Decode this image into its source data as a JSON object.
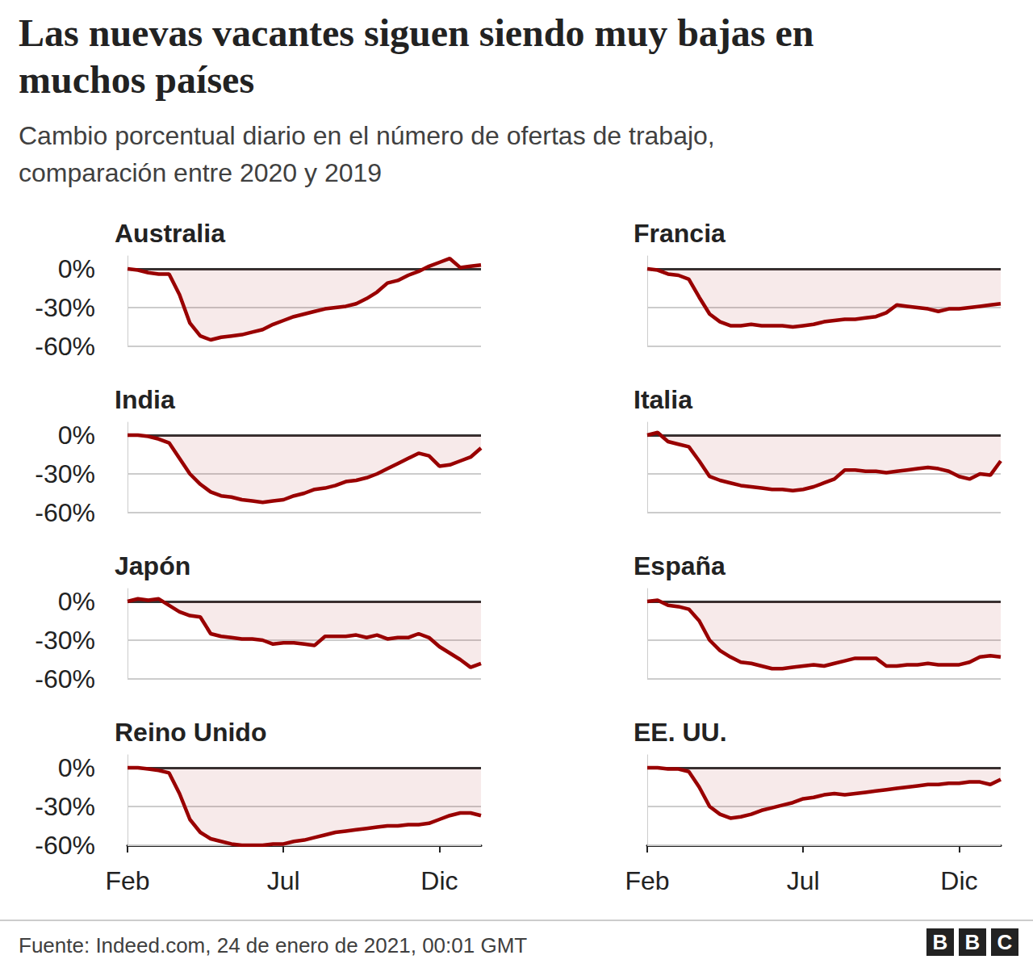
{
  "title": "Las nuevas vacantes siguen siendo muy bajas en muchos países",
  "subtitle": "Cambio porcentual diario en el número de ofertas de trabajo, comparación entre 2020 y 2019",
  "source": "Fuente: Indeed.com, 24 de enero de 2021, 00:01 GMT",
  "logo": "BBC",
  "chart_data": [
    {
      "type": "line",
      "title": "Australia",
      "categories": [
        "Feb",
        null,
        null,
        null,
        null,
        null,
        null,
        null,
        null,
        null,
        null,
        null,
        null,
        null,
        null,
        "Jul",
        null,
        null,
        null,
        null,
        null,
        null,
        null,
        null,
        null,
        null,
        null,
        null,
        null,
        null,
        "Dic",
        null,
        null,
        null,
        null
      ],
      "values": [
        0,
        -1,
        -3,
        -4,
        -4,
        -20,
        -42,
        -52,
        -55,
        -53,
        -52,
        -51,
        -49,
        -47,
        -43,
        -40,
        -37,
        -35,
        -33,
        -31,
        -30,
        -29,
        -27,
        -23,
        -18,
        -11,
        -9,
        -5,
        -2,
        2,
        5,
        8,
        1,
        2,
        3
      ],
      "color": "#990000",
      "ylim": [
        -60,
        10
      ],
      "yticks": [
        {
          "value": -60,
          "label": "-60%"
        },
        {
          "value": -30,
          "label": "-30%"
        },
        {
          "value": 0,
          "label": "0%"
        }
      ],
      "grid": true,
      "tick_labels": "y"
    },
    {
      "type": "line",
      "title": "Francia",
      "categories": [
        "Feb",
        null,
        null,
        null,
        null,
        null,
        null,
        null,
        null,
        null,
        null,
        null,
        null,
        null,
        null,
        "Jul",
        null,
        null,
        null,
        null,
        null,
        null,
        null,
        null,
        null,
        null,
        null,
        null,
        null,
        null,
        "Dic",
        null,
        null,
        null,
        null
      ],
      "values": [
        0,
        -1,
        -4,
        -5,
        -8,
        -22,
        -35,
        -41,
        -44,
        -44,
        -43,
        -44,
        -44,
        -44,
        -45,
        -44,
        -43,
        -41,
        -40,
        -39,
        -39,
        -38,
        -37,
        -34,
        -28,
        -29,
        -30,
        -31,
        -33,
        -31,
        -31,
        -30,
        -29,
        -28,
        -27
      ],
      "color": "#990000",
      "ylim": [
        -60,
        10
      ],
      "yticks": [
        {
          "value": -60,
          "label": "-60%"
        },
        {
          "value": -30,
          "label": "-30%"
        },
        {
          "value": 0,
          "label": "0%"
        }
      ],
      "grid": true,
      "tick_labels": false
    },
    {
      "type": "line",
      "title": "India",
      "categories": [
        "Feb",
        null,
        null,
        null,
        null,
        null,
        null,
        null,
        null,
        null,
        null,
        null,
        null,
        null,
        null,
        "Jul",
        null,
        null,
        null,
        null,
        null,
        null,
        null,
        null,
        null,
        null,
        null,
        null,
        null,
        null,
        "Dic",
        null,
        null,
        null,
        null
      ],
      "values": [
        0,
        0,
        -1,
        -3,
        -6,
        -18,
        -30,
        -38,
        -44,
        -47,
        -48,
        -50,
        -51,
        -52,
        -51,
        -50,
        -47,
        -45,
        -42,
        -41,
        -39,
        -36,
        -35,
        -33,
        -30,
        -26,
        -22,
        -18,
        -14,
        -16,
        -24,
        -23,
        -20,
        -17,
        -10
      ],
      "color": "#990000",
      "ylim": [
        -60,
        10
      ],
      "yticks": [
        {
          "value": -60,
          "label": "-60%"
        },
        {
          "value": -30,
          "label": "-30%"
        },
        {
          "value": 0,
          "label": "0%"
        }
      ],
      "grid": true,
      "tick_labels": "y"
    },
    {
      "type": "line",
      "title": "Italia",
      "categories": [
        "Feb",
        null,
        null,
        null,
        null,
        null,
        null,
        null,
        null,
        null,
        null,
        null,
        null,
        null,
        null,
        "Jul",
        null,
        null,
        null,
        null,
        null,
        null,
        null,
        null,
        null,
        null,
        null,
        null,
        null,
        null,
        "Dic",
        null,
        null,
        null,
        null
      ],
      "values": [
        0,
        2,
        -5,
        -7,
        -9,
        -20,
        -32,
        -35,
        -37,
        -39,
        -40,
        -41,
        -42,
        -42,
        -43,
        -42,
        -40,
        -37,
        -34,
        -27,
        -27,
        -28,
        -28,
        -29,
        -28,
        -27,
        -26,
        -25,
        -26,
        -28,
        -32,
        -34,
        -30,
        -31,
        -20
      ],
      "color": "#990000",
      "ylim": [
        -60,
        10
      ],
      "yticks": [
        {
          "value": -60,
          "label": "-60%"
        },
        {
          "value": -30,
          "label": "-30%"
        },
        {
          "value": 0,
          "label": "0%"
        }
      ],
      "grid": true,
      "tick_labels": false
    },
    {
      "type": "line",
      "title": "Japón",
      "categories": [
        "Feb",
        null,
        null,
        null,
        null,
        null,
        null,
        null,
        null,
        null,
        null,
        null,
        null,
        null,
        null,
        "Jul",
        null,
        null,
        null,
        null,
        null,
        null,
        null,
        null,
        null,
        null,
        null,
        null,
        null,
        null,
        "Dic",
        null,
        null,
        null,
        null
      ],
      "values": [
        0,
        2,
        1,
        2,
        -3,
        -8,
        -11,
        -12,
        -25,
        -27,
        -28,
        -29,
        -29,
        -30,
        -33,
        -32,
        -32,
        -33,
        -34,
        -27,
        -27,
        -27,
        -26,
        -28,
        -26,
        -29,
        -28,
        -28,
        -25,
        -28,
        -35,
        -40,
        -45,
        -51,
        -48
      ],
      "color": "#990000",
      "ylim": [
        -60,
        10
      ],
      "yticks": [
        {
          "value": -60,
          "label": "-60%"
        },
        {
          "value": -30,
          "label": "-30%"
        },
        {
          "value": 0,
          "label": "0%"
        }
      ],
      "grid": true,
      "tick_labels": "y"
    },
    {
      "type": "line",
      "title": "España",
      "categories": [
        "Feb",
        null,
        null,
        null,
        null,
        null,
        null,
        null,
        null,
        null,
        null,
        null,
        null,
        null,
        null,
        "Jul",
        null,
        null,
        null,
        null,
        null,
        null,
        null,
        null,
        null,
        null,
        null,
        null,
        null,
        null,
        "Dic",
        null,
        null,
        null,
        null
      ],
      "values": [
        0,
        1,
        -3,
        -4,
        -6,
        -15,
        -30,
        -38,
        -43,
        -47,
        -48,
        -50,
        -52,
        -52,
        -51,
        -50,
        -49,
        -50,
        -48,
        -46,
        -44,
        -44,
        -44,
        -50,
        -50,
        -49,
        -49,
        -48,
        -49,
        -49,
        -49,
        -47,
        -43,
        -42,
        -43
      ],
      "color": "#990000",
      "ylim": [
        -60,
        10
      ],
      "yticks": [
        {
          "value": -60,
          "label": "-60%"
        },
        {
          "value": -30,
          "label": "-30%"
        },
        {
          "value": 0,
          "label": "0%"
        }
      ],
      "grid": true,
      "tick_labels": false
    },
    {
      "type": "line",
      "title": "Reino Unido",
      "categories": [
        "Feb",
        null,
        null,
        null,
        null,
        null,
        null,
        null,
        null,
        null,
        null,
        null,
        null,
        null,
        null,
        "Jul",
        null,
        null,
        null,
        null,
        null,
        null,
        null,
        null,
        null,
        null,
        null,
        null,
        null,
        null,
        "Dic",
        null,
        null,
        null,
        null
      ],
      "values": [
        0,
        0,
        -1,
        -2,
        -4,
        -20,
        -40,
        -50,
        -55,
        -57,
        -59,
        -60,
        -60,
        -60,
        -59,
        -59,
        -57,
        -56,
        -54,
        -52,
        -50,
        -49,
        -48,
        -47,
        -46,
        -45,
        -45,
        -44,
        -44,
        -43,
        -40,
        -37,
        -35,
        -35,
        -37
      ],
      "color": "#990000",
      "ylim": [
        -60,
        10
      ],
      "yticks": [
        {
          "value": -60,
          "label": "-60%"
        },
        {
          "value": -30,
          "label": "-30%"
        },
        {
          "value": 0,
          "label": "0%"
        }
      ],
      "grid": true,
      "tick_labels": true
    },
    {
      "type": "line",
      "title": "EE. UU.",
      "categories": [
        "Feb",
        null,
        null,
        null,
        null,
        null,
        null,
        null,
        null,
        null,
        null,
        null,
        null,
        null,
        null,
        "Jul",
        null,
        null,
        null,
        null,
        null,
        null,
        null,
        null,
        null,
        null,
        null,
        null,
        null,
        null,
        "Dic",
        null,
        null,
        null,
        null
      ],
      "values": [
        0,
        0,
        -1,
        -1,
        -3,
        -15,
        -30,
        -36,
        -39,
        -38,
        -36,
        -33,
        -31,
        -29,
        -27,
        -24,
        -23,
        -21,
        -20,
        -21,
        -20,
        -19,
        -18,
        -17,
        -16,
        -15,
        -14,
        -13,
        -13,
        -12,
        -12,
        -11,
        -11,
        -13,
        -9
      ],
      "color": "#990000",
      "ylim": [
        -60,
        10
      ],
      "yticks": [
        {
          "value": -60,
          "label": "-60%"
        },
        {
          "value": -30,
          "label": "-30%"
        },
        {
          "value": 0,
          "label": "0%"
        }
      ],
      "grid": true,
      "tick_labels": "x"
    }
  ]
}
